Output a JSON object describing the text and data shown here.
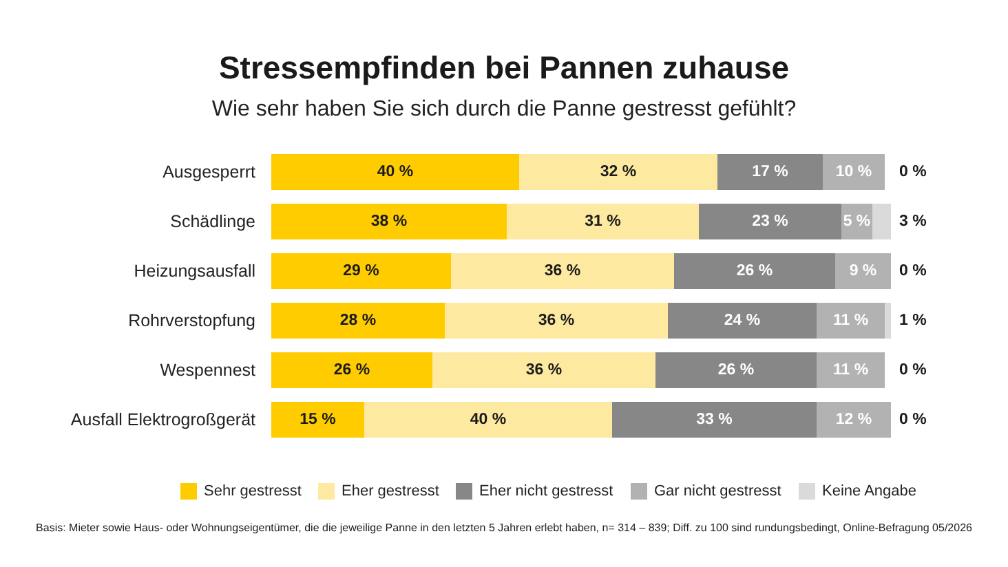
{
  "chart_data": {
    "type": "bar",
    "orientation": "horizontal",
    "stacked": true,
    "title": "Stressempfinden bei Pannen zuhause",
    "subtitle": "Wie sehr haben Sie sich durch die Panne gestresst gefühlt?",
    "categories": [
      "Ausgesperrt",
      "Schädlinge",
      "Heizungsausfall",
      "Rohrverstopfung",
      "Wespennest",
      "Ausfall Elektrogroßgerät"
    ],
    "series": [
      {
        "name": "Sehr gestresst",
        "color": "#ffcc00",
        "values": [
          40,
          38,
          29,
          28,
          26,
          15
        ],
        "value_labels": [
          "40 %",
          "38 %",
          "29 %",
          "28 %",
          "26 %",
          "15 %"
        ]
      },
      {
        "name": "Eher gestresst",
        "color": "#fde9a0",
        "values": [
          32,
          31,
          36,
          36,
          36,
          40
        ],
        "value_labels": [
          "32 %",
          "31 %",
          "36 %",
          "36 %",
          "36 %",
          "40 %"
        ]
      },
      {
        "name": "Eher nicht gestresst",
        "color": "#878787",
        "values": [
          17,
          23,
          26,
          24,
          26,
          33
        ],
        "value_labels": [
          "17 %",
          "23 %",
          "26 %",
          "24 %",
          "26 %",
          "33 %"
        ]
      },
      {
        "name": "Gar nicht gestresst",
        "color": "#b2b2b2",
        "values": [
          10,
          5,
          9,
          11,
          11,
          12
        ],
        "value_labels": [
          "10 %",
          "5 %",
          "9 %",
          "11 %",
          "11 %",
          "12 %"
        ]
      },
      {
        "name": "Keine Angabe",
        "color": "#dadada",
        "values": [
          0,
          3,
          0,
          1,
          0,
          0
        ],
        "value_labels": [
          "0 %",
          "3 %",
          "0 %",
          "1 %",
          "0 %",
          "0 %"
        ]
      }
    ],
    "legend": "bottom",
    "annotations": [
      "Basis: Mieter sowie Haus- oder Wohnungseigentümer, die die jeweilige Panne in den letzten 5 Jahren erlebt haben, n= 314 – 839; Diff. zu 100 sind rundungsbedingt, Online-Befragung 05/2026"
    ]
  }
}
